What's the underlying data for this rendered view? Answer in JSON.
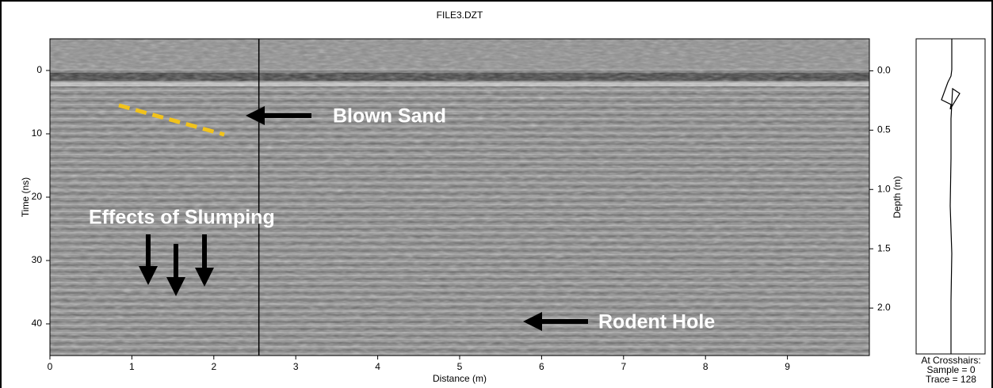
{
  "chart_data": {
    "type": "radargram",
    "title": "FILE3.DZT",
    "x_label": "Distance (m)",
    "y_label": "Time (ns)",
    "y2_label": "Depth (m)",
    "xlim": [
      0,
      10
    ],
    "xticks": [
      0,
      1,
      2,
      3,
      4,
      5,
      6,
      7,
      8,
      9
    ],
    "ylim": [
      45,
      -5
    ],
    "yticks": [
      0,
      10,
      20,
      30,
      40
    ],
    "y2lim": [
      2.4,
      -0.27
    ],
    "y2ticks": [
      {
        "value": 0,
        "label": "0.0"
      },
      {
        "value": 0.5,
        "label": "0.5"
      },
      {
        "value": 1,
        "label": "1.0"
      },
      {
        "value": 1.5,
        "label": "1.5"
      },
      {
        "value": 2,
        "label": "2.0"
      }
    ],
    "crosshair_x": 2.55,
    "annotations": [
      "Blown Sand",
      "Effects of Slumping",
      "Rodent Hole"
    ],
    "readout": [
      "At Crosshairs:",
      "Sample = 0",
      "Trace = 128"
    ]
  }
}
